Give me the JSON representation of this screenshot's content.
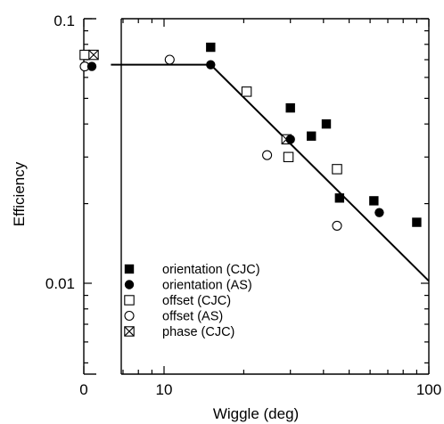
{
  "chart_data": {
    "type": "scatter",
    "xlabel": "Wiggle (deg)",
    "ylabel": "Efficiency",
    "yscale": "log",
    "xscale": "log",
    "xlim": [
      6,
      100
    ],
    "ylim": [
      0.005,
      0.1
    ],
    "x_ticks_main": [
      "10",
      "100"
    ],
    "x_tick_zero": "0",
    "y_ticks": [
      "0.1",
      "0.01"
    ],
    "legend_position": "bottom-left",
    "series": [
      {
        "name": "orientation (CJC)",
        "marker": "filled-square",
        "points": [
          [
            15,
            0.078
          ],
          [
            30,
            0.046
          ],
          [
            36,
            0.036
          ],
          [
            41,
            0.04
          ],
          [
            46,
            0.021
          ],
          [
            62,
            0.0205
          ],
          [
            90,
            0.017
          ]
        ]
      },
      {
        "name": "orientation (AS)",
        "marker": "filled-circle",
        "zero_points": [
          0.066
        ],
        "points": [
          [
            15,
            0.067
          ],
          [
            30,
            0.035
          ],
          [
            65,
            0.0185
          ]
        ]
      },
      {
        "name": "offset (CJC)",
        "marker": "open-square",
        "zero_points": [
          0.073
        ],
        "points": [
          [
            20.5,
            0.053
          ],
          [
            29.5,
            0.03
          ],
          [
            45,
            0.027
          ]
        ]
      },
      {
        "name": "offset (AS)",
        "marker": "open-circle",
        "zero_points": [
          0.066
        ],
        "points": [
          [
            10.5,
            0.07
          ],
          [
            24.5,
            0.0305
          ],
          [
            45,
            0.0165
          ]
        ]
      },
      {
        "name": "phase (CJC)",
        "marker": "crossed-square",
        "zero_points": [
          0.073
        ],
        "points": [
          [
            29,
            0.035
          ]
        ]
      }
    ],
    "fit_line": {
      "plateau_y": 0.067,
      "x_start": 6.3,
      "x_break": 15,
      "x_end": 100,
      "y_end": 0.0102
    }
  }
}
